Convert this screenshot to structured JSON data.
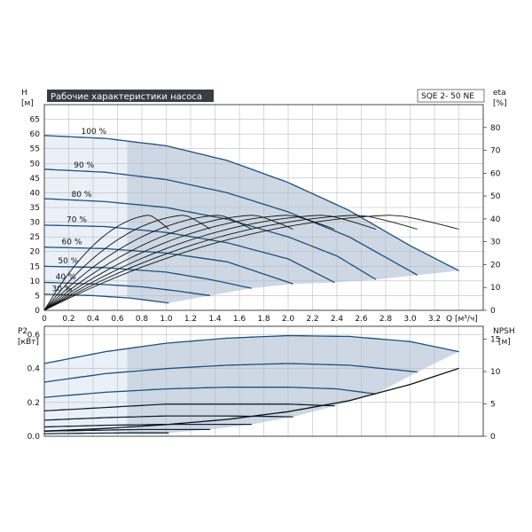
{
  "chart_data": [
    {
      "type": "line",
      "title": "Рабочие характеристики насоса",
      "model": "SQE 2- 50 NE",
      "ylabel": "H",
      "yunit": "[м]",
      "y2label": "eta",
      "y2unit": "[%]",
      "xlabel": "Q",
      "xunit": "[м³/ч]",
      "xlim": [
        0,
        3.6
      ],
      "ylim": [
        0,
        70
      ],
      "y2lim": [
        0,
        90
      ],
      "xticks": [
        "0",
        "0.2",
        "0.4",
        "0.6",
        "0.8",
        "1.0",
        "1.2",
        "1.4",
        "1.6",
        "1.8",
        "2.0",
        "2.2",
        "2.4",
        "2.6",
        "2.8",
        "3.0",
        "3.2"
      ],
      "yticks": [
        "0",
        "5",
        "10",
        "15",
        "20",
        "25",
        "30",
        "35",
        "40",
        "45",
        "50",
        "55",
        "60",
        "65"
      ],
      "y2ticks": [
        "0",
        "10",
        "20",
        "30",
        "40",
        "50",
        "60",
        "70",
        "80"
      ],
      "grid": true,
      "colors": {
        "area": "#cdd8e4",
        "area_light": "#e9f0f7",
        "curve": "#1f4f7c",
        "eff": "#111111"
      },
      "series": [
        {
          "name": "100 %",
          "x": [
            0,
            0.5,
            1.0,
            1.5,
            2.0,
            2.5,
            3.0,
            3.4
          ],
          "values": [
            59.5,
            58.5,
            56.0,
            51.0,
            43.5,
            34.0,
            22.0,
            13.5
          ]
        },
        {
          "name": "90 %",
          "x": [
            0,
            0.5,
            1.0,
            1.5,
            2.0,
            2.5,
            3.06
          ],
          "values": [
            48.0,
            47.0,
            44.5,
            40.0,
            33.5,
            25.0,
            12.0
          ]
        },
        {
          "name": "80 %",
          "x": [
            0,
            0.5,
            1.0,
            1.5,
            2.0,
            2.4,
            2.72
          ],
          "values": [
            38.0,
            37.0,
            35.0,
            31.0,
            25.0,
            18.5,
            10.5
          ]
        },
        {
          "name": "70 %",
          "x": [
            0,
            0.5,
            1.0,
            1.5,
            2.0,
            2.38
          ],
          "values": [
            29.0,
            28.5,
            26.5,
            23.0,
            17.5,
            9.5
          ]
        },
        {
          "name": "60 %",
          "x": [
            0,
            0.5,
            1.0,
            1.5,
            2.04
          ],
          "values": [
            21.5,
            21.0,
            19.5,
            16.5,
            9.0
          ]
        },
        {
          "name": "50 %",
          "x": [
            0,
            0.5,
            1.0,
            1.36,
            1.7
          ],
          "values": [
            15.0,
            14.5,
            13.0,
            10.5,
            7.5
          ]
        },
        {
          "name": "40 %",
          "x": [
            0,
            0.4,
            0.8,
            1.05,
            1.36
          ],
          "values": [
            9.5,
            9.0,
            8.0,
            6.8,
            5.0
          ]
        },
        {
          "name": "30 %",
          "x": [
            0,
            0.4,
            0.7,
            1.02
          ],
          "values": [
            5.5,
            5.0,
            4.2,
            2.5
          ]
        }
      ],
      "efficiency_peak_percent": 45
    },
    {
      "type": "line",
      "ylabel": "P2",
      "yunit": "[кВт]",
      "y2label": "NPSH",
      "y2unit": "[м]",
      "ylim": [
        0,
        0.65
      ],
      "y2lim": [
        0,
        17
      ],
      "yticks": [
        "0.0",
        "0.2",
        "0.4",
        "0.6"
      ],
      "y2ticks": [
        "0",
        "5",
        "10",
        "15"
      ],
      "grid": true,
      "series": [
        {
          "name": "100 %",
          "x": [
            0,
            0.5,
            1.0,
            1.5,
            2.0,
            2.5,
            3.0,
            3.4
          ],
          "values": [
            0.43,
            0.5,
            0.55,
            0.58,
            0.595,
            0.59,
            0.56,
            0.5
          ]
        },
        {
          "name": "90 %",
          "x": [
            0,
            0.5,
            1.0,
            1.5,
            2.0,
            2.5,
            3.06
          ],
          "values": [
            0.32,
            0.37,
            0.4,
            0.42,
            0.43,
            0.42,
            0.38
          ]
        },
        {
          "name": "80 %",
          "x": [
            0,
            0.5,
            1.0,
            1.5,
            2.0,
            2.4,
            2.72
          ],
          "values": [
            0.23,
            0.26,
            0.28,
            0.29,
            0.29,
            0.28,
            0.25
          ]
        },
        {
          "name": "70 %",
          "x": [
            0,
            0.5,
            1.0,
            1.5,
            2.0,
            2.38
          ],
          "values": [
            0.15,
            0.17,
            0.19,
            0.19,
            0.19,
            0.18
          ]
        },
        {
          "name": "60 %",
          "x": [
            0,
            0.5,
            1.0,
            1.5,
            2.04
          ],
          "values": [
            0.095,
            0.11,
            0.12,
            0.12,
            0.115
          ]
        },
        {
          "name": "50 %",
          "x": [
            0,
            0.5,
            1.0,
            1.36,
            1.7
          ],
          "values": [
            0.055,
            0.065,
            0.07,
            0.07,
            0.07
          ]
        },
        {
          "name": "40 %",
          "x": [
            0,
            0.4,
            0.8,
            1.05,
            1.36
          ],
          "values": [
            0.03,
            0.035,
            0.04,
            0.04,
            0.04
          ]
        },
        {
          "name": "30 %",
          "x": [
            0,
            0.4,
            0.7,
            1.02
          ],
          "values": [
            0.015,
            0.018,
            0.02,
            0.02
          ]
        }
      ],
      "npsh": {
        "x": [
          0,
          0.5,
          1.0,
          1.5,
          2.0,
          2.5,
          3.0,
          3.4
        ],
        "values": [
          0.8,
          1.2,
          1.8,
          2.6,
          3.8,
          5.5,
          8.0,
          10.5
        ]
      }
    }
  ]
}
